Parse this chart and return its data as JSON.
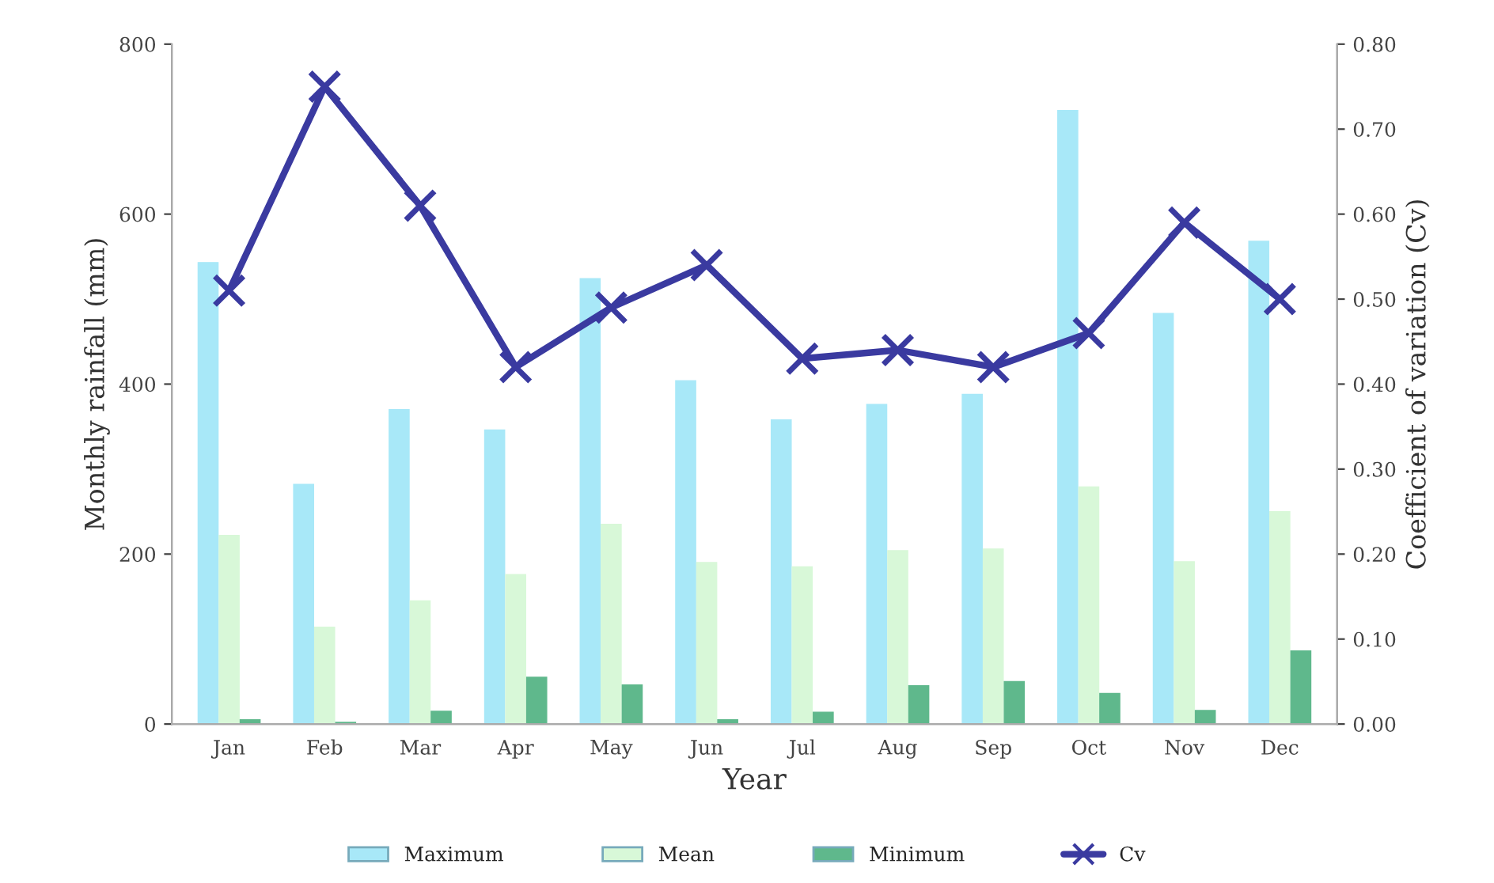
{
  "chart_data": {
    "type": "bar",
    "xlabel": "Year",
    "ylabel": "Monthly rainfall (mm)",
    "y2label": "Coefficient of variation (Cv)",
    "categories": [
      "Jan",
      "Feb",
      "Mar",
      "Apr",
      "May",
      "Jun",
      "Jul",
      "Aug",
      "Sep",
      "Oct",
      "Nov",
      "Dec"
    ],
    "series": [
      {
        "name": "Maximum",
        "color": "#a8e8f8",
        "values": [
          543,
          282,
          370,
          346,
          524,
          404,
          358,
          376,
          388,
          722,
          483,
          568
        ]
      },
      {
        "name": "Mean",
        "color": "#d8f8d8",
        "values": [
          222,
          114,
          145,
          176,
          235,
          190,
          185,
          204,
          206,
          279,
          191,
          250
        ]
      },
      {
        "name": "Minimum",
        "color": "#5fb88c",
        "values": [
          5,
          2,
          15,
          55,
          46,
          5,
          14,
          45,
          50,
          36,
          16,
          86
        ]
      },
      {
        "name": "Cv",
        "type": "line",
        "axis": "y2",
        "color": "#3a3aa0",
        "marker": "cross",
        "values": [
          0.51,
          0.75,
          0.61,
          0.42,
          0.49,
          0.54,
          0.43,
          0.44,
          0.42,
          0.46,
          0.59,
          0.5
        ]
      }
    ],
    "ylim": [
      0,
      800
    ],
    "yticks": [
      0,
      200,
      400,
      600,
      800
    ],
    "y2lim": [
      0,
      0.8
    ],
    "y2ticks": [
      {
        "value": 0,
        "label": "0.00"
      },
      {
        "value": 0.1,
        "label": "0.10"
      },
      {
        "value": 0.2,
        "label": "0.20"
      },
      {
        "value": 0.3,
        "label": "0.30"
      },
      {
        "value": 0.4,
        "label": "0.40"
      },
      {
        "value": 0.5,
        "label": "0.50"
      },
      {
        "value": 0.6,
        "label": "0.60"
      },
      {
        "value": 0.7,
        "label": "0.70"
      },
      {
        "value": 0.8,
        "label": "0.80"
      }
    ],
    "legend": "bottom",
    "grid": false
  }
}
